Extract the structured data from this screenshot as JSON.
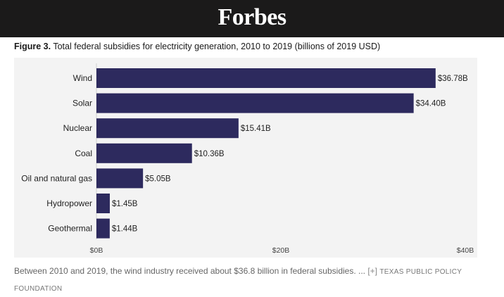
{
  "header": {
    "logo": "Forbes"
  },
  "figure": {
    "label": "Figure 3.",
    "title": "Total federal subsidies for electricity generation, 2010 to 2019 (billions of 2019 USD)"
  },
  "chart_data": {
    "type": "bar",
    "orientation": "horizontal",
    "title": "Figure 3. Total federal subsidies for electricity generation, 2010 to 2019 (billions of 2019 USD)",
    "categories": [
      "Wind",
      "Solar",
      "Nuclear",
      "Coal",
      "Oil and natural gas",
      "Hydropower",
      "Geothermal"
    ],
    "values": [
      36.78,
      34.4,
      15.41,
      10.36,
      5.05,
      1.45,
      1.44
    ],
    "data_labels": [
      "$36.78B",
      "$34.40B",
      "$15.41B",
      "$10.36B",
      "$5.05B",
      "$1.45B",
      "$1.44B"
    ],
    "xlim": [
      0,
      40
    ],
    "xticks": [
      0,
      20,
      40
    ],
    "xtick_labels": [
      "$0B",
      "$20B",
      "$40B"
    ],
    "bar_color": "#2d2a5e",
    "grid": false,
    "legend": false
  },
  "caption": {
    "text": "Between 2010 and 2019, the wind industry received about $36.8 billion in federal subsidies. ...",
    "expand": "[+]",
    "credit": "TEXAS PUBLIC POLICY FOUNDATION"
  }
}
